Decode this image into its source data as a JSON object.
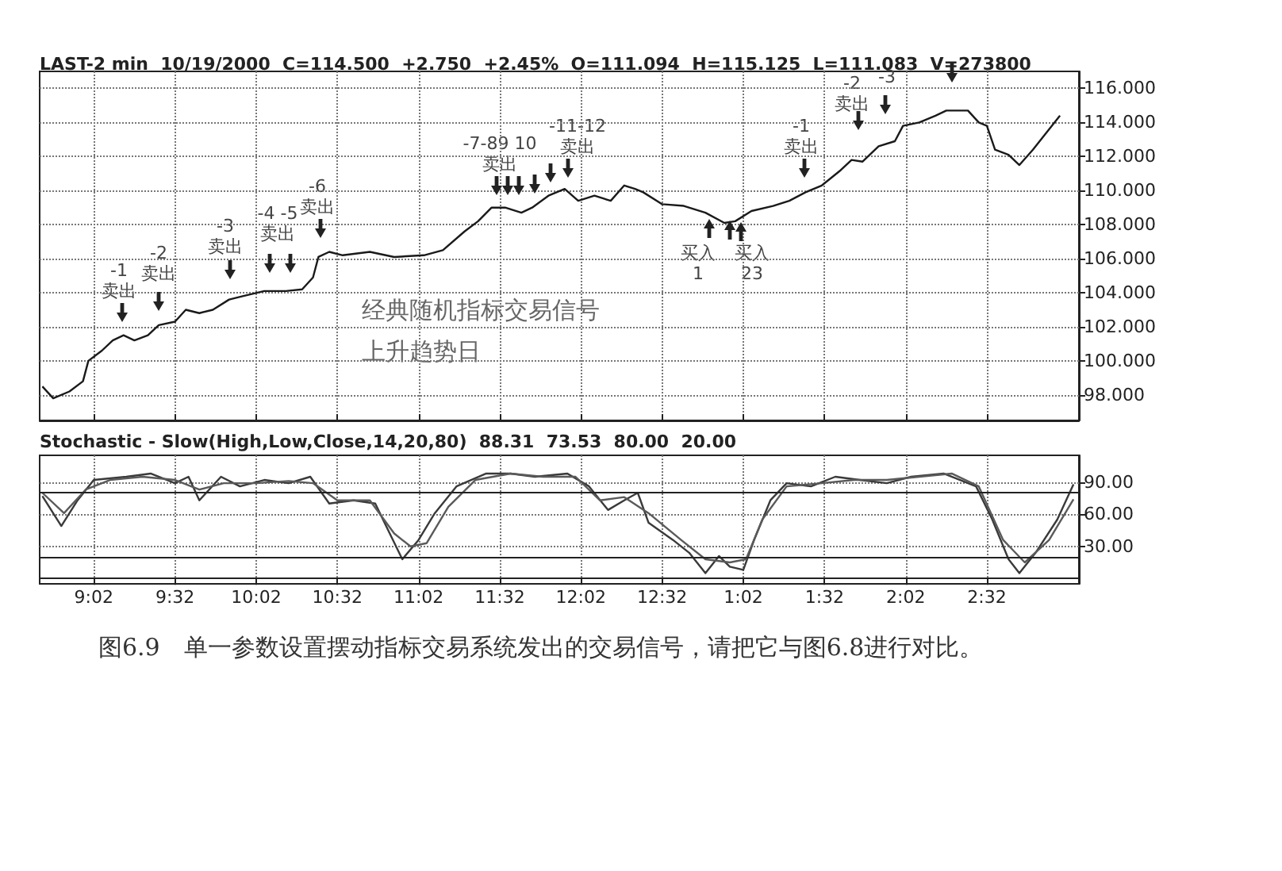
{
  "chart_data": [
    {
      "type": "line",
      "subtitle": "LAST-2 min  10/19/2000  C=114.500  +2.750  +2.45%  O=111.094  H=115.125  L=111.083  V=273800",
      "marker": "none",
      "line_style": "solid",
      "grid": true,
      "tick_labels": "y",
      "xlim": [
        "2000-10-19T08:42",
        "2000-10-19T15:06"
      ],
      "xticks": [
        {
          "value": "2000-10-19T09:02",
          "label": null
        },
        {
          "value": "2000-10-19T09:32",
          "label": null
        },
        {
          "value": "2000-10-19T10:02",
          "label": null
        },
        {
          "value": "2000-10-19T10:32",
          "label": null
        },
        {
          "value": "2000-10-19T11:02",
          "label": null
        },
        {
          "value": "2000-10-19T11:32",
          "label": null
        },
        {
          "value": "2000-10-19T12:02",
          "label": null
        },
        {
          "value": "2000-10-19T12:32",
          "label": null
        },
        {
          "value": "2000-10-19T13:02",
          "label": null
        },
        {
          "value": "2000-10-19T13:32",
          "label": null
        },
        {
          "value": "2000-10-19T14:02",
          "label": null
        },
        {
          "value": "2000-10-19T14:32",
          "label": null
        }
      ],
      "ylim": [
        96.5,
        117
      ],
      "yticks": [
        {
          "value": 98,
          "label": "98.000"
        },
        {
          "value": 100,
          "label": "100.000"
        },
        {
          "value": 102,
          "label": "102.000"
        },
        {
          "value": 104,
          "label": "104.000"
        },
        {
          "value": 106,
          "label": "106.000"
        },
        {
          "value": 108,
          "label": "108.000"
        },
        {
          "value": 110,
          "label": "110.000"
        },
        {
          "value": 112,
          "label": "112.000"
        },
        {
          "value": 114,
          "label": "114.000"
        },
        {
          "value": 116,
          "label": "116.000"
        }
      ],
      "series": [
        {
          "color": "#1a1a1a",
          "x": [
            "2000-10-19T08:43",
            "2000-10-19T08:47",
            "2000-10-19T08:53",
            "2000-10-19T08:58",
            "2000-10-19T09:00",
            "2000-10-19T09:05",
            "2000-10-19T09:09",
            "2000-10-19T09:13",
            "2000-10-19T09:17",
            "2000-10-19T09:22",
            "2000-10-19T09:26",
            "2000-10-19T09:32",
            "2000-10-19T09:36",
            "2000-10-19T09:41",
            "2000-10-19T09:46",
            "2000-10-19T09:52",
            "2000-10-19T09:57",
            "2000-10-19T10:05",
            "2000-10-19T10:13",
            "2000-10-19T10:19",
            "2000-10-19T10:23",
            "2000-10-19T10:25",
            "2000-10-19T10:29",
            "2000-10-19T10:34",
            "2000-10-19T10:44",
            "2000-10-19T10:53",
            "2000-10-19T11:04",
            "2000-10-19T11:11",
            "2000-10-19T11:19",
            "2000-10-19T11:24",
            "2000-10-19T11:29",
            "2000-10-19T11:34",
            "2000-10-19T11:40",
            "2000-10-19T11:44",
            "2000-10-19T11:50",
            "2000-10-19T11:56",
            "2000-10-19T12:01",
            "2000-10-19T12:07",
            "2000-10-19T12:13",
            "2000-10-19T12:18",
            "2000-10-19T12:22",
            "2000-10-19T12:25",
            "2000-10-19T12:32",
            "2000-10-19T12:40",
            "2000-10-19T12:48",
            "2000-10-19T12:55",
            "2000-10-19T12:59",
            "2000-10-19T13:05",
            "2000-10-19T13:13",
            "2000-10-19T13:19",
            "2000-10-19T13:25",
            "2000-10-19T13:31",
            "2000-10-19T13:38",
            "2000-10-19T13:42",
            "2000-10-19T13:46",
            "2000-10-19T13:52",
            "2000-10-19T13:58",
            "2000-10-19T14:01",
            "2000-10-19T14:07",
            "2000-10-19T14:13",
            "2000-10-19T14:17",
            "2000-10-19T14:25",
            "2000-10-19T14:29",
            "2000-10-19T14:32",
            "2000-10-19T14:35",
            "2000-10-19T14:40",
            "2000-10-19T14:44",
            "2000-10-19T14:49",
            "2000-10-19T14:53",
            "2000-10-19T14:59"
          ],
          "values": [
            98.5,
            97.8,
            98.2,
            98.8,
            100.0,
            100.6,
            101.2,
            101.5,
            101.2,
            101.5,
            102.1,
            102.3,
            103.0,
            102.8,
            103.0,
            103.6,
            103.8,
            104.1,
            104.1,
            104.2,
            104.9,
            106.1,
            106.4,
            106.2,
            106.4,
            106.1,
            106.2,
            106.5,
            107.6,
            108.2,
            109.0,
            109.0,
            108.7,
            109.0,
            109.7,
            110.1,
            109.4,
            109.7,
            109.4,
            110.3,
            110.1,
            109.9,
            109.2,
            109.1,
            108.7,
            108.1,
            108.2,
            108.8,
            109.1,
            109.4,
            109.9,
            110.3,
            111.2,
            111.8,
            111.7,
            112.6,
            112.9,
            113.8,
            114.0,
            114.4,
            114.7,
            114.7,
            114.0,
            113.8,
            112.4,
            112.1,
            111.5,
            112.4,
            113.2,
            114.4
          ]
        }
      ],
      "annotations": [
        "经典随机指标交易信号",
        "上升趋势日",
        "-1\n卖出",
        "-2\n卖出",
        "-3\n卖出",
        "-4 -5\n卖出",
        "-6\n卖出",
        "-7-89 10\n卖出",
        "-11-12\n卖出",
        "买入\n1",
        "买入\n23",
        "-1\n卖出",
        "-2\n卖出",
        "-3"
      ]
    },
    {
      "type": "line",
      "title": "Stochastic - Slow(High,Low,Close,14,20,80)  88.31  73.53  80.00  20.00",
      "marker": "none",
      "line_style": "solid",
      "grid": true,
      "xlim": [
        "2000-10-19T08:42",
        "2000-10-19T15:06"
      ],
      "xticks": [
        {
          "value": "2000-10-19T09:02",
          "label": "9:02"
        },
        {
          "value": "2000-10-19T09:32",
          "label": "9:32"
        },
        {
          "value": "2000-10-19T10:02",
          "label": "10:02"
        },
        {
          "value": "2000-10-19T10:32",
          "label": "10:32"
        },
        {
          "value": "2000-10-19T11:02",
          "label": "11:02"
        },
        {
          "value": "2000-10-19T11:32",
          "label": "11:32"
        },
        {
          "value": "2000-10-19T12:02",
          "label": "12:02"
        },
        {
          "value": "2000-10-19T12:32",
          "label": "12:32"
        },
        {
          "value": "2000-10-19T13:02",
          "label": "1:02"
        },
        {
          "value": "2000-10-19T13:32",
          "label": "1:32"
        },
        {
          "value": "2000-10-19T14:02",
          "label": "2:02"
        },
        {
          "value": "2000-10-19T14:32",
          "label": "2:32"
        }
      ],
      "ylim": [
        -5,
        115
      ],
      "yticks": [
        {
          "value": 30,
          "label": "30.00"
        },
        {
          "value": 60,
          "label": "60.00"
        },
        {
          "value": 90,
          "label": "90.00"
        }
      ],
      "ref_lines": [
        {
          "axis": "y",
          "value": 80,
          "color": "#222222"
        },
        {
          "axis": "y",
          "value": 20,
          "color": "#222222"
        }
      ],
      "series": [
        {
          "color": "#3a3a3a",
          "x": [
            "2000-10-19T08:43",
            "2000-10-19T08:50",
            "2000-10-19T08:56",
            "2000-10-19T09:02",
            "2000-10-19T09:14",
            "2000-10-19T09:23",
            "2000-10-19T09:32",
            "2000-10-19T09:37",
            "2000-10-19T09:41",
            "2000-10-19T09:49",
            "2000-10-19T09:56",
            "2000-10-19T10:05",
            "2000-10-19T10:14",
            "2000-10-19T10:22",
            "2000-10-19T10:29",
            "2000-10-19T10:38",
            "2000-10-19T10:46",
            "2000-10-19T10:50",
            "2000-10-19T10:56",
            "2000-10-19T11:02",
            "2000-10-19T11:08",
            "2000-10-19T11:16",
            "2000-10-19T11:27",
            "2000-10-19T11:36",
            "2000-10-19T11:45",
            "2000-10-19T11:57",
            "2000-10-19T12:05",
            "2000-10-19T12:12",
            "2000-10-19T12:18",
            "2000-10-19T12:23",
            "2000-10-19T12:27",
            "2000-10-19T12:36",
            "2000-10-19T12:42",
            "2000-10-19T12:48",
            "2000-10-19T12:53",
            "2000-10-19T12:57",
            "2000-10-19T13:02",
            "2000-10-19T13:06",
            "2000-10-19T13:12",
            "2000-10-19T13:18",
            "2000-10-19T13:27",
            "2000-10-19T13:36",
            "2000-10-19T13:45",
            "2000-10-19T13:55",
            "2000-10-19T14:04",
            "2000-10-19T14:16",
            "2000-10-19T14:28",
            "2000-10-19T14:34",
            "2000-10-19T14:40",
            "2000-10-19T14:44",
            "2000-10-19T14:50",
            "2000-10-19T14:58",
            "2000-10-19T15:04"
          ],
          "values": [
            77,
            49,
            73,
            92,
            95,
            98,
            89,
            95,
            73,
            95,
            86,
            92,
            89,
            95,
            70,
            73,
            70,
            49,
            18,
            36,
            61,
            86,
            98,
            98,
            95,
            98,
            86,
            64,
            73,
            80,
            52,
            36,
            24,
            5,
            21,
            11,
            8,
            36,
            73,
            89,
            86,
            95,
            92,
            89,
            95,
            98,
            86,
            55,
            18,
            5,
            24,
            55,
            88
          ]
        },
        {
          "color": "#5a5a5a",
          "x": [
            "2000-10-19T08:43",
            "2000-10-19T08:51",
            "2000-10-19T08:59",
            "2000-10-19T09:08",
            "2000-10-19T09:20",
            "2000-10-19T09:32",
            "2000-10-19T09:41",
            "2000-10-19T09:50",
            "2000-10-19T10:02",
            "2000-10-19T10:14",
            "2000-10-19T10:23",
            "2000-10-19T10:32",
            "2000-10-19T10:44",
            "2000-10-19T10:53",
            "2000-10-19T10:59",
            "2000-10-19T11:05",
            "2000-10-19T11:13",
            "2000-10-19T11:23",
            "2000-10-19T11:36",
            "2000-10-19T11:48",
            "2000-10-19T12:00",
            "2000-10-19T12:09",
            "2000-10-19T12:18",
            "2000-10-19T12:27",
            "2000-10-19T12:39",
            "2000-10-19T12:48",
            "2000-10-19T12:57",
            "2000-10-19T13:03",
            "2000-10-19T13:09",
            "2000-10-19T13:18",
            "2000-10-19T13:31",
            "2000-10-19T13:43",
            "2000-10-19T13:55",
            "2000-10-19T14:07",
            "2000-10-19T14:19",
            "2000-10-19T14:29",
            "2000-10-19T14:38",
            "2000-10-19T14:46",
            "2000-10-19T14:55",
            "2000-10-19T15:04"
          ],
          "values": [
            80,
            61,
            83,
            92,
            95,
            92,
            83,
            89,
            89,
            91,
            89,
            73,
            73,
            42,
            30,
            33,
            67,
            92,
            98,
            95,
            95,
            73,
            76,
            61,
            36,
            18,
            15,
            18,
            55,
            86,
            89,
            92,
            92,
            95,
            98,
            86,
            36,
            15,
            36,
            74
          ]
        }
      ],
      "annotations": [
        "图6.9　单一参数设置摆动指标交易系统发出的交易信号，请把它与图6.8进行对比。"
      ]
    }
  ]
}
